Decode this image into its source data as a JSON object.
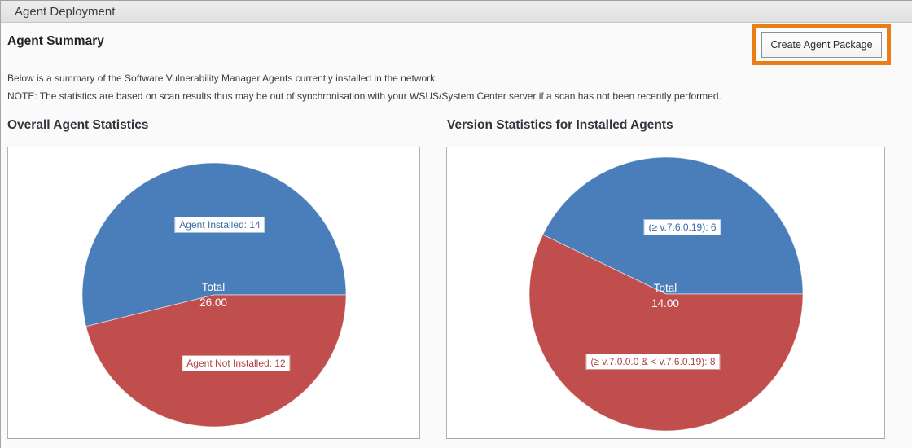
{
  "header": {
    "title": "Agent Deployment"
  },
  "page": {
    "title": "Agent Summary",
    "create_button_label": "Create Agent Package",
    "annotation_color": "#ea7e14",
    "description_line1": "Below is a summary of the Software Vulnerability Manager Agents currently installed in the network.",
    "description_line2": "NOTE: The statistics are based on scan results thus may be out of synchronisation with your WSUS/System Center server if a scan has not been recently performed."
  },
  "chart_data": [
    {
      "type": "pie",
      "title": "Overall Agent Statistics",
      "total_label": "Total",
      "total_value": "26.00",
      "total": 26,
      "legend_position": "labels-on-slices",
      "slices": [
        {
          "name": "Agent Installed",
          "value": 14,
          "label": "Agent Installed: 14",
          "color": "#4a7eba",
          "text_color": "#3c6aa6",
          "border_color": "#a8bfdc"
        },
        {
          "name": "Agent Not Installed",
          "value": 12,
          "label": "Agent Not Installed: 12",
          "color": "#bf4e4d",
          "text_color": "#ad4341",
          "border_color": "#d29a98"
        }
      ]
    },
    {
      "type": "pie",
      "title": "Version Statistics for Installed Agents",
      "total_label": "Total",
      "total_value": "14.00",
      "total": 14,
      "legend_position": "labels-on-slices",
      "slices": [
        {
          "name": ">= v.7.6.0.19",
          "value": 6,
          "label": "(≥ v.7.6.0.19): 6",
          "color": "#4a7eba",
          "text_color": "#3c6aa6",
          "border_color": "#a8bfdc"
        },
        {
          "name": ">= v.7.0.0.0 & < v.7.6.0.19",
          "value": 8,
          "label": "(≥ v.7.0.0.0 & < v.7.6.0.19): 8",
          "color": "#bf4e4d",
          "text_color": "#ad4341",
          "border_color": "#d29a98"
        }
      ]
    }
  ]
}
